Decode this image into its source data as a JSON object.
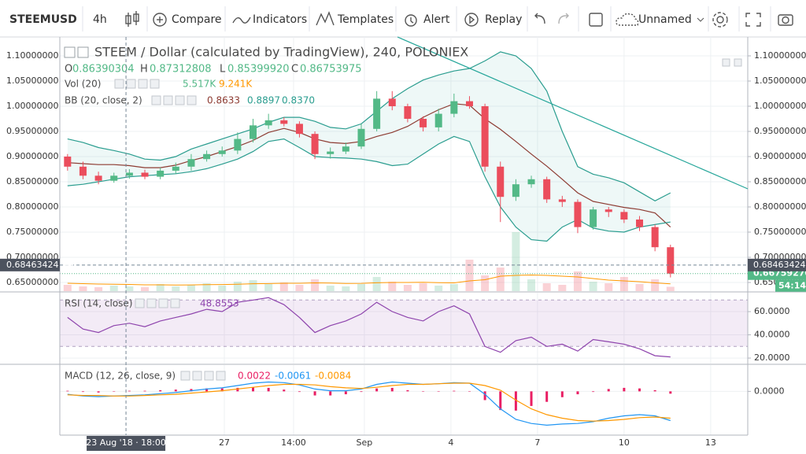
{
  "toolbar": {
    "symbol": "STEEMUSD",
    "interval": "4h",
    "buttons": [
      "Compare",
      "Indicators",
      "Templates",
      "Alert",
      "Replay"
    ],
    "layout_name": "Unnamed"
  },
  "chart_data": [
    {
      "type": "candlestick",
      "title": "STEEM / Dollar (calculated by TradingView), 240, POLONIEX",
      "legend": {
        "ohlc": [
          {
            "key": "O",
            "value": "0.86390304"
          },
          {
            "key": "H",
            "value": "0.87312808"
          },
          {
            "key": "L",
            "value": "0.85399920"
          },
          {
            "key": "C",
            "value": "0.86753975"
          }
        ]
      },
      "colors": {
        "up": "#53b987",
        "down": "#eb4d5c"
      },
      "x": [
        0.5,
        1.5,
        2.5,
        3.5,
        4.5,
        5.5,
        6.5,
        7.5,
        8.5,
        9.5,
        10.5,
        11.5,
        12.5,
        13.5,
        14.5,
        15.5,
        16.5,
        17.5,
        18.5,
        19.5,
        20.5,
        21.5,
        22.5,
        23.5,
        24.5,
        25.5,
        26.5,
        27.5,
        28.5,
        29.5,
        30.5,
        31.5,
        32.5,
        33.5,
        34.5,
        35.5,
        36.5,
        37.5,
        38.5,
        39.5
      ],
      "xlim": [
        0,
        44.5
      ],
      "open": [
        0.9,
        0.88,
        0.862,
        0.852,
        0.862,
        0.868,
        0.86,
        0.872,
        0.88,
        0.895,
        0.905,
        0.912,
        0.935,
        0.962,
        0.972,
        0.965,
        0.945,
        0.905,
        0.91,
        0.92,
        0.955,
        1.015,
        1.0,
        0.975,
        0.958,
        0.985,
        1.01,
        1.0,
        0.88,
        0.82,
        0.845,
        0.855,
        0.815,
        0.81,
        0.76,
        0.795,
        0.79,
        0.775,
        0.76,
        0.72
      ],
      "high": [
        0.905,
        0.89,
        0.87,
        0.868,
        0.875,
        0.874,
        0.878,
        0.888,
        0.905,
        0.912,
        0.92,
        0.948,
        0.975,
        0.985,
        0.978,
        0.97,
        0.95,
        0.918,
        0.928,
        0.965,
        1.03,
        1.03,
        1.005,
        0.98,
        0.995,
        1.025,
        1.02,
        1.005,
        0.89,
        0.855,
        0.862,
        0.86,
        0.822,
        0.815,
        0.8,
        0.8,
        0.795,
        0.782,
        0.765,
        0.725
      ],
      "low": [
        0.872,
        0.855,
        0.845,
        0.848,
        0.856,
        0.855,
        0.855,
        0.866,
        0.872,
        0.89,
        0.9,
        0.905,
        0.928,
        0.955,
        0.96,
        0.938,
        0.895,
        0.896,
        0.905,
        0.915,
        0.95,
        0.992,
        0.968,
        0.95,
        0.95,
        0.978,
        0.995,
        0.87,
        0.77,
        0.812,
        0.838,
        0.808,
        0.8,
        0.748,
        0.755,
        0.78,
        0.768,
        0.752,
        0.712,
        0.66
      ],
      "close": [
        0.88,
        0.862,
        0.852,
        0.862,
        0.868,
        0.86,
        0.872,
        0.88,
        0.895,
        0.905,
        0.912,
        0.935,
        0.962,
        0.972,
        0.965,
        0.945,
        0.905,
        0.91,
        0.92,
        0.955,
        1.015,
        1.0,
        0.975,
        0.958,
        0.985,
        1.01,
        1.0,
        0.88,
        0.82,
        0.845,
        0.855,
        0.815,
        0.81,
        0.76,
        0.795,
        0.79,
        0.775,
        0.76,
        0.72,
        0.6676
      ],
      "ylim": [
        0.6328,
        1.1375
      ],
      "yticks": [
        {
          "value": 0.65,
          "label": "0.65000000"
        },
        {
          "value": 0.7,
          "label": "0.70000000"
        },
        {
          "value": 0.75,
          "label": "0.75000000"
        },
        {
          "value": 0.8,
          "label": "0.80000000"
        },
        {
          "value": 0.85,
          "label": "0.85000000"
        },
        {
          "value": 0.9,
          "label": "0.90000000"
        },
        {
          "value": 0.95,
          "label": "0.95000000"
        },
        {
          "value": 1.0,
          "label": "1.00000000"
        },
        {
          "value": 1.05,
          "label": "1.05000000"
        },
        {
          "value": 1.1,
          "label": "1.10000000"
        }
      ],
      "grid": true,
      "bb": {
        "name": "BB (20, close, 2)",
        "readout": [
          "0.8633",
          "0.8897",
          "0.8370"
        ],
        "fill": "rgba(38,166,154,0.08)",
        "lines": [
          {
            "color": "#8d3b32",
            "values": [
              0.888,
              0.886,
              0.884,
              0.884,
              0.882,
              0.878,
              0.878,
              0.883,
              0.892,
              0.9,
              0.91,
              0.92,
              0.932,
              0.948,
              0.956,
              0.948,
              0.935,
              0.928,
              0.926,
              0.93,
              0.94,
              0.948,
              0.96,
              0.978,
              0.993,
              1.005,
              1.002,
              0.975,
              0.954,
              0.93,
              0.905,
              0.881,
              0.855,
              0.828,
              0.811,
              0.805,
              0.799,
              0.795,
              0.788,
              0.76
            ]
          },
          {
            "color": "#2a9d8f",
            "values": [
              0.935,
              0.928,
              0.918,
              0.912,
              0.905,
              0.895,
              0.893,
              0.9,
              0.915,
              0.925,
              0.935,
              0.945,
              0.955,
              0.968,
              0.978,
              0.978,
              0.97,
              0.958,
              0.955,
              0.965,
              0.99,
              1.015,
              1.035,
              1.052,
              1.062,
              1.07,
              1.075,
              1.09,
              1.108,
              1.1,
              1.075,
              1.03,
              0.95,
              0.88,
              0.865,
              0.858,
              0.848,
              0.83,
              0.812,
              0.828
            ]
          },
          {
            "color": "#2a9d8f",
            "values": [
              0.842,
              0.845,
              0.85,
              0.855,
              0.86,
              0.862,
              0.864,
              0.866,
              0.87,
              0.876,
              0.885,
              0.895,
              0.91,
              0.93,
              0.935,
              0.918,
              0.9,
              0.898,
              0.897,
              0.895,
              0.89,
              0.882,
              0.885,
              0.905,
              0.925,
              0.94,
              0.93,
              0.86,
              0.8,
              0.76,
              0.735,
              0.732,
              0.76,
              0.775,
              0.758,
              0.752,
              0.75,
              0.76,
              0.765,
              0.77
            ]
          }
        ]
      },
      "volume": {
        "name": "Vol (20)",
        "readout": [
          "5.517K",
          "9.241K"
        ],
        "lim": [
          0,
          100
        ],
        "ma_color": "#ff9800",
        "values": [
          8,
          6,
          5,
          7,
          6,
          5,
          9,
          6,
          8,
          10,
          7,
          12,
          14,
          9,
          11,
          8,
          15,
          7,
          6,
          9,
          18,
          12,
          8,
          10,
          7,
          9,
          40,
          20,
          30,
          75,
          15,
          10,
          8,
          25,
          12,
          10,
          18,
          9,
          15,
          5.517
        ],
        "ma": [
          10,
          9.5,
          9,
          8.8,
          8.5,
          8,
          8,
          7.8,
          7.9,
          8.2,
          8.4,
          8.8,
          9.4,
          9.6,
          10,
          10,
          10.5,
          10.2,
          9.8,
          9.9,
          10.6,
          11,
          11,
          11.2,
          10.8,
          10.5,
          13,
          14.5,
          19,
          20,
          20.5,
          20,
          19,
          18,
          16,
          14,
          13,
          12,
          10.5,
          9.241
        ]
      },
      "crosshair": {
        "x": 4.28,
        "price": {
          "value": 0.68463424,
          "label": "0.68463424"
        },
        "time_label": "23 Aug '18 · 18:00"
      },
      "last_price": {
        "value": 0.6675927,
        "label": "0.66759270"
      },
      "countdown": "54:14"
    },
    {
      "type": "line",
      "title": "RSI (14, close)",
      "readout": "48.8553",
      "color": "#8e44ad",
      "values": [
        55,
        45,
        42,
        48,
        50,
        47,
        52,
        55,
        58,
        62,
        60,
        68,
        70,
        72,
        66,
        55,
        42,
        48,
        52,
        58,
        68,
        60,
        55,
        52,
        60,
        65,
        58,
        30,
        25,
        35,
        38,
        30,
        32,
        26,
        36,
        34,
        32,
        28,
        22,
        21
      ],
      "band": [
        30,
        70
      ],
      "ylim": [
        15.3,
        76.3
      ],
      "yticks": [
        {
          "value": 20,
          "label": "20.0000"
        },
        {
          "value": 40,
          "label": "40.0000"
        },
        {
          "value": 60,
          "label": "60.0000"
        }
      ]
    },
    {
      "type": "macd",
      "title": "MACD (12, 26, close, 9)",
      "readout": [
        "0.0022",
        "-0.0061",
        "-0.0084"
      ],
      "series": [
        {
          "color": "#e91e63",
          "values": [
            0.001,
            -0.001,
            -0.002,
            0,
            0.001,
            0.001,
            0.002,
            0.003,
            0.004,
            0.005,
            0.005,
            0.006,
            0.007,
            0.006,
            0.003,
            -0.001,
            -0.007,
            -0.007,
            -0.005,
            -0.001,
            0.005,
            0.006,
            0.002,
            0,
            0,
            0.001,
            0,
            -0.015,
            -0.032,
            -0.033,
            -0.025,
            -0.018,
            -0.01,
            -0.005,
            -0.001,
            0.004,
            0.006,
            0.005,
            0.002,
            -0.004
          ]
        },
        {
          "color": "#2196f3",
          "values": [
            -0.005,
            -0.008,
            -0.009,
            -0.008,
            -0.007,
            -0.006,
            -0.004,
            -0.002,
            0.001,
            0.004,
            0.006,
            0.01,
            0.014,
            0.016,
            0.015,
            0.011,
            0.004,
            0.001,
            0.001,
            0.004,
            0.012,
            0.016,
            0.014,
            0.012,
            0.013,
            0.015,
            0.014,
            -0.005,
            -0.03,
            -0.048,
            -0.055,
            -0.058,
            -0.056,
            -0.055,
            -0.052,
            -0.046,
            -0.042,
            -0.04,
            -0.042,
            -0.05
          ]
        },
        {
          "color": "#ff9800",
          "values": [
            -0.006,
            -0.007,
            -0.007,
            -0.008,
            -0.008,
            -0.007,
            -0.006,
            -0.005,
            -0.003,
            -0.001,
            0.001,
            0.004,
            0.007,
            0.01,
            0.012,
            0.012,
            0.011,
            0.008,
            0.006,
            0.005,
            0.007,
            0.01,
            0.012,
            0.012,
            0.013,
            0.014,
            0.014,
            0.01,
            0.002,
            -0.015,
            -0.03,
            -0.04,
            -0.046,
            -0.05,
            -0.051,
            -0.05,
            -0.048,
            -0.045,
            -0.044,
            -0.046
          ]
        }
      ],
      "ylim": [
        -0.075,
        0.045
      ],
      "yticks": [
        {
          "value": 0,
          "label": "0.0000"
        }
      ],
      "xticks": [
        {
          "value": 10.64,
          "label": "27"
        },
        {
          "value": 15.12,
          "label": "14:00"
        },
        {
          "value": 19.7,
          "label": "Sep"
        },
        {
          "value": 25.3,
          "label": "4"
        },
        {
          "value": 30.9,
          "label": "7"
        },
        {
          "value": 36.5,
          "label": "10"
        },
        {
          "value": 42.1,
          "label": "13"
        }
      ]
    }
  ]
}
